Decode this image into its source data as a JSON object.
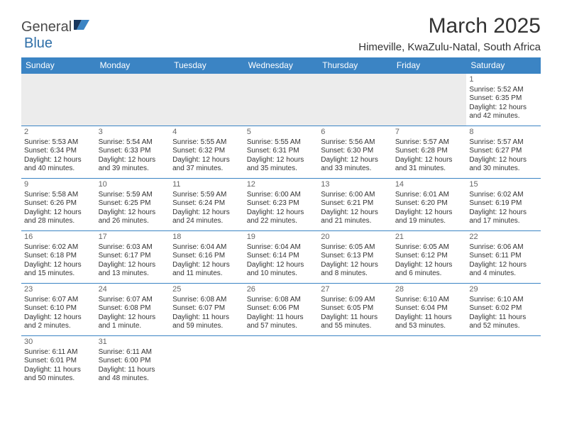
{
  "brand": {
    "general": "General",
    "blue": "Blue"
  },
  "title": "March 2025",
  "location": "Himeville, KwaZulu-Natal, South Africa",
  "colors": {
    "header_bg": "#3b84c4",
    "header_fg": "#ffffff",
    "cell_border": "#3b84c4",
    "empty_bg": "#ececec",
    "text": "#333333",
    "daynum": "#666666"
  },
  "weekdays": [
    "Sunday",
    "Monday",
    "Tuesday",
    "Wednesday",
    "Thursday",
    "Friday",
    "Saturday"
  ],
  "weeks": [
    [
      null,
      null,
      null,
      null,
      null,
      null,
      {
        "n": "1",
        "sr": "Sunrise: 5:52 AM",
        "ss": "Sunset: 6:35 PM",
        "d1": "Daylight: 12 hours",
        "d2": "and 42 minutes."
      }
    ],
    [
      {
        "n": "2",
        "sr": "Sunrise: 5:53 AM",
        "ss": "Sunset: 6:34 PM",
        "d1": "Daylight: 12 hours",
        "d2": "and 40 minutes."
      },
      {
        "n": "3",
        "sr": "Sunrise: 5:54 AM",
        "ss": "Sunset: 6:33 PM",
        "d1": "Daylight: 12 hours",
        "d2": "and 39 minutes."
      },
      {
        "n": "4",
        "sr": "Sunrise: 5:55 AM",
        "ss": "Sunset: 6:32 PM",
        "d1": "Daylight: 12 hours",
        "d2": "and 37 minutes."
      },
      {
        "n": "5",
        "sr": "Sunrise: 5:55 AM",
        "ss": "Sunset: 6:31 PM",
        "d1": "Daylight: 12 hours",
        "d2": "and 35 minutes."
      },
      {
        "n": "6",
        "sr": "Sunrise: 5:56 AM",
        "ss": "Sunset: 6:30 PM",
        "d1": "Daylight: 12 hours",
        "d2": "and 33 minutes."
      },
      {
        "n": "7",
        "sr": "Sunrise: 5:57 AM",
        "ss": "Sunset: 6:28 PM",
        "d1": "Daylight: 12 hours",
        "d2": "and 31 minutes."
      },
      {
        "n": "8",
        "sr": "Sunrise: 5:57 AM",
        "ss": "Sunset: 6:27 PM",
        "d1": "Daylight: 12 hours",
        "d2": "and 30 minutes."
      }
    ],
    [
      {
        "n": "9",
        "sr": "Sunrise: 5:58 AM",
        "ss": "Sunset: 6:26 PM",
        "d1": "Daylight: 12 hours",
        "d2": "and 28 minutes."
      },
      {
        "n": "10",
        "sr": "Sunrise: 5:59 AM",
        "ss": "Sunset: 6:25 PM",
        "d1": "Daylight: 12 hours",
        "d2": "and 26 minutes."
      },
      {
        "n": "11",
        "sr": "Sunrise: 5:59 AM",
        "ss": "Sunset: 6:24 PM",
        "d1": "Daylight: 12 hours",
        "d2": "and 24 minutes."
      },
      {
        "n": "12",
        "sr": "Sunrise: 6:00 AM",
        "ss": "Sunset: 6:23 PM",
        "d1": "Daylight: 12 hours",
        "d2": "and 22 minutes."
      },
      {
        "n": "13",
        "sr": "Sunrise: 6:00 AM",
        "ss": "Sunset: 6:21 PM",
        "d1": "Daylight: 12 hours",
        "d2": "and 21 minutes."
      },
      {
        "n": "14",
        "sr": "Sunrise: 6:01 AM",
        "ss": "Sunset: 6:20 PM",
        "d1": "Daylight: 12 hours",
        "d2": "and 19 minutes."
      },
      {
        "n": "15",
        "sr": "Sunrise: 6:02 AM",
        "ss": "Sunset: 6:19 PM",
        "d1": "Daylight: 12 hours",
        "d2": "and 17 minutes."
      }
    ],
    [
      {
        "n": "16",
        "sr": "Sunrise: 6:02 AM",
        "ss": "Sunset: 6:18 PM",
        "d1": "Daylight: 12 hours",
        "d2": "and 15 minutes."
      },
      {
        "n": "17",
        "sr": "Sunrise: 6:03 AM",
        "ss": "Sunset: 6:17 PM",
        "d1": "Daylight: 12 hours",
        "d2": "and 13 minutes."
      },
      {
        "n": "18",
        "sr": "Sunrise: 6:04 AM",
        "ss": "Sunset: 6:16 PM",
        "d1": "Daylight: 12 hours",
        "d2": "and 11 minutes."
      },
      {
        "n": "19",
        "sr": "Sunrise: 6:04 AM",
        "ss": "Sunset: 6:14 PM",
        "d1": "Daylight: 12 hours",
        "d2": "and 10 minutes."
      },
      {
        "n": "20",
        "sr": "Sunrise: 6:05 AM",
        "ss": "Sunset: 6:13 PM",
        "d1": "Daylight: 12 hours",
        "d2": "and 8 minutes."
      },
      {
        "n": "21",
        "sr": "Sunrise: 6:05 AM",
        "ss": "Sunset: 6:12 PM",
        "d1": "Daylight: 12 hours",
        "d2": "and 6 minutes."
      },
      {
        "n": "22",
        "sr": "Sunrise: 6:06 AM",
        "ss": "Sunset: 6:11 PM",
        "d1": "Daylight: 12 hours",
        "d2": "and 4 minutes."
      }
    ],
    [
      {
        "n": "23",
        "sr": "Sunrise: 6:07 AM",
        "ss": "Sunset: 6:10 PM",
        "d1": "Daylight: 12 hours",
        "d2": "and 2 minutes."
      },
      {
        "n": "24",
        "sr": "Sunrise: 6:07 AM",
        "ss": "Sunset: 6:08 PM",
        "d1": "Daylight: 12 hours",
        "d2": "and 1 minute."
      },
      {
        "n": "25",
        "sr": "Sunrise: 6:08 AM",
        "ss": "Sunset: 6:07 PM",
        "d1": "Daylight: 11 hours",
        "d2": "and 59 minutes."
      },
      {
        "n": "26",
        "sr": "Sunrise: 6:08 AM",
        "ss": "Sunset: 6:06 PM",
        "d1": "Daylight: 11 hours",
        "d2": "and 57 minutes."
      },
      {
        "n": "27",
        "sr": "Sunrise: 6:09 AM",
        "ss": "Sunset: 6:05 PM",
        "d1": "Daylight: 11 hours",
        "d2": "and 55 minutes."
      },
      {
        "n": "28",
        "sr": "Sunrise: 6:10 AM",
        "ss": "Sunset: 6:04 PM",
        "d1": "Daylight: 11 hours",
        "d2": "and 53 minutes."
      },
      {
        "n": "29",
        "sr": "Sunrise: 6:10 AM",
        "ss": "Sunset: 6:02 PM",
        "d1": "Daylight: 11 hours",
        "d2": "and 52 minutes."
      }
    ],
    [
      {
        "n": "30",
        "sr": "Sunrise: 6:11 AM",
        "ss": "Sunset: 6:01 PM",
        "d1": "Daylight: 11 hours",
        "d2": "and 50 minutes."
      },
      {
        "n": "31",
        "sr": "Sunrise: 6:11 AM",
        "ss": "Sunset: 6:00 PM",
        "d1": "Daylight: 11 hours",
        "d2": "and 48 minutes."
      },
      null,
      null,
      null,
      null,
      null
    ]
  ]
}
